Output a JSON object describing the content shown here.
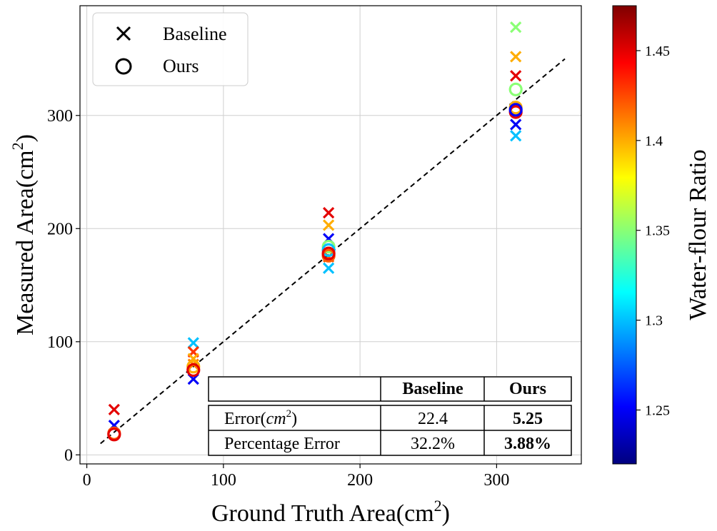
{
  "chart_data": {
    "type": "scatter",
    "xlabel": "Ground Truth Area(cm",
    "xlabel_sup": "2",
    "xlabel_close": ")",
    "ylabel": "Measured Area(cm",
    "ylabel_sup": "2",
    "ylabel_close": ")",
    "xlim": [
      -5,
      362
    ],
    "ylim": [
      -8,
      397
    ],
    "xticks": [
      0,
      100,
      200,
      300
    ],
    "yticks": [
      0,
      100,
      200,
      300
    ],
    "grid": true,
    "legend_position": "top-left",
    "reference_line": {
      "style": "dashed",
      "color": "#000000",
      "x": [
        10,
        350
      ],
      "y": [
        10,
        350
      ]
    },
    "colorbar": {
      "label": "Water-flour Ratio",
      "range": [
        1.22,
        1.475
      ],
      "ticks": [
        1.25,
        1.3,
        1.35,
        1.4,
        1.45
      ],
      "tick_labels": [
        "1.25",
        "1.3",
        "1.35",
        "1.4",
        "1.45"
      ],
      "colormap": "jet"
    },
    "series": [
      {
        "name": "Baseline",
        "marker": "x",
        "points": [
          {
            "x": 20,
            "y": 40,
            "c": 1.45
          },
          {
            "x": 20,
            "y": 26,
            "c": 1.25
          },
          {
            "x": 78,
            "y": 99,
            "c": 1.3
          },
          {
            "x": 78,
            "y": 91,
            "c": 1.43
          },
          {
            "x": 78,
            "y": 85,
            "c": 1.4
          },
          {
            "x": 78,
            "y": 80,
            "c": 1.41
          },
          {
            "x": 78,
            "y": 67,
            "c": 1.25
          },
          {
            "x": 177,
            "y": 214,
            "c": 1.45
          },
          {
            "x": 177,
            "y": 203,
            "c": 1.4
          },
          {
            "x": 177,
            "y": 191,
            "c": 1.25
          },
          {
            "x": 177,
            "y": 175,
            "c": 1.42
          },
          {
            "x": 177,
            "y": 165,
            "c": 1.3
          },
          {
            "x": 314,
            "y": 378,
            "c": 1.35
          },
          {
            "x": 314,
            "y": 352,
            "c": 1.4
          },
          {
            "x": 314,
            "y": 335,
            "c": 1.45
          },
          {
            "x": 314,
            "y": 292,
            "c": 1.25
          },
          {
            "x": 314,
            "y": 282,
            "c": 1.3
          }
        ]
      },
      {
        "name": "Ours",
        "marker": "o",
        "points": [
          {
            "x": 20,
            "y": 19,
            "c": 1.42
          },
          {
            "x": 20,
            "y": 18,
            "c": 1.45
          },
          {
            "x": 78,
            "y": 78,
            "c": 1.4
          },
          {
            "x": 78,
            "y": 75,
            "c": 1.45
          },
          {
            "x": 177,
            "y": 184,
            "c": 1.35
          },
          {
            "x": 177,
            "y": 181,
            "c": 1.3
          },
          {
            "x": 177,
            "y": 176,
            "c": 1.42
          },
          {
            "x": 177,
            "y": 178,
            "c": 1.45
          },
          {
            "x": 314,
            "y": 323,
            "c": 1.35
          },
          {
            "x": 314,
            "y": 307,
            "c": 1.4
          },
          {
            "x": 314,
            "y": 303,
            "c": 1.45
          },
          {
            "x": 314,
            "y": 305,
            "c": 1.25
          }
        ]
      }
    ],
    "table": {
      "columns": [
        "",
        "Baseline",
        "Ours"
      ],
      "rows": [
        {
          "label": "Error(",
          "label_math": "cm",
          "label_sup": "2",
          "label_close": ")",
          "baseline": "22.4",
          "ours": "5.25"
        },
        {
          "label": "Percentage Error",
          "label_math": "",
          "label_sup": "",
          "label_close": "",
          "baseline": "32.2%",
          "ours": "3.88%"
        }
      ]
    }
  }
}
